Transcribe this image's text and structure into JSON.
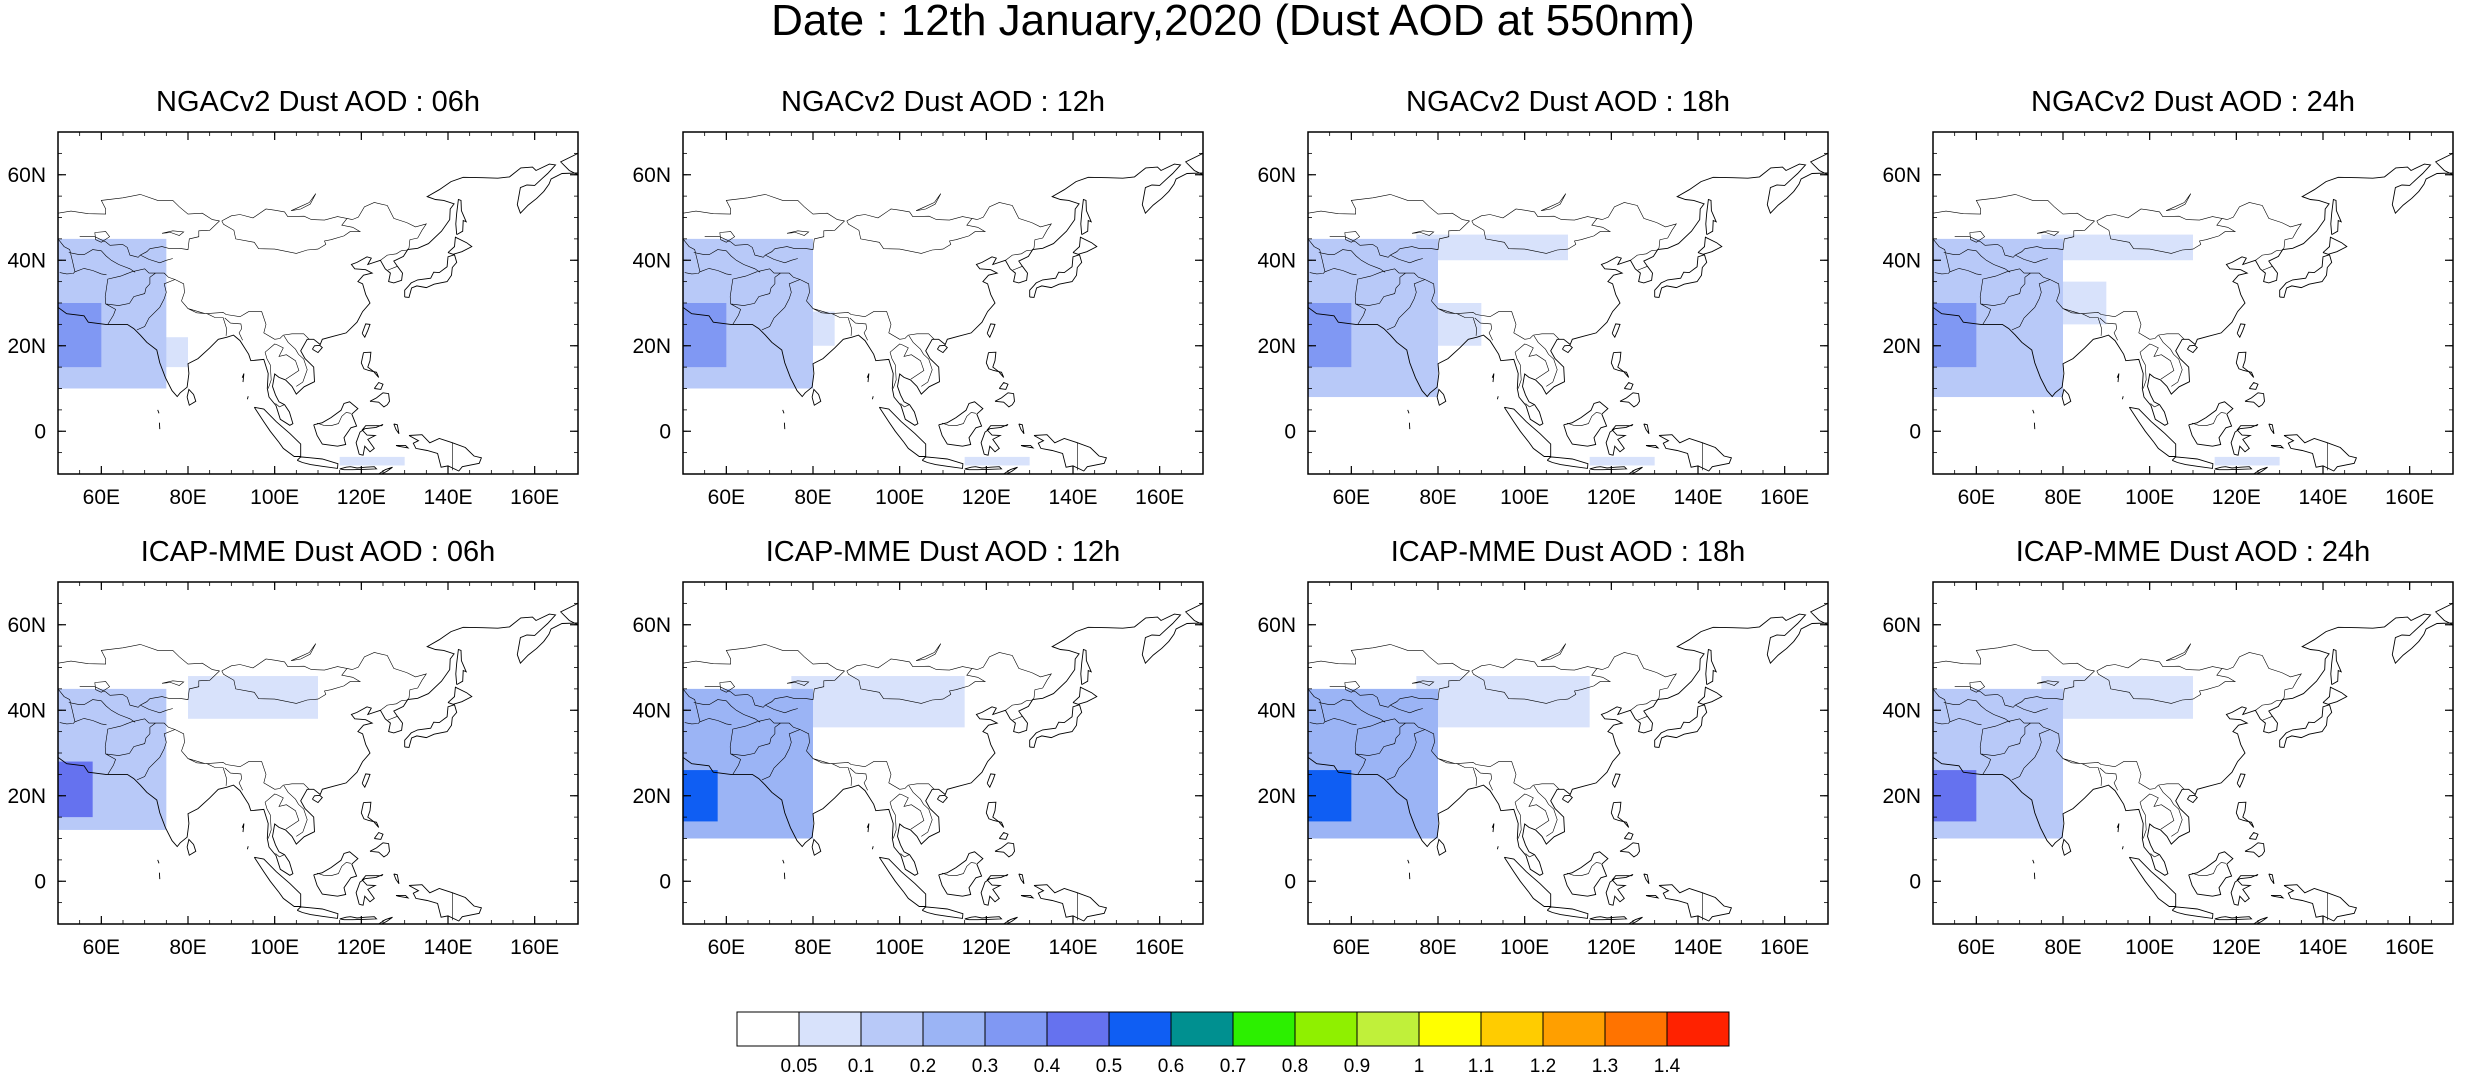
{
  "title": "Date : 12th January,2020 (Dust AOD at 550nm)",
  "axes": {
    "lon_ticks": [
      "60E",
      "80E",
      "100E",
      "120E",
      "140E",
      "160E"
    ],
    "lon_values": [
      60,
      80,
      100,
      120,
      140,
      160
    ],
    "lat_ticks": [
      "60N",
      "40N",
      "20N",
      "0"
    ],
    "lat_values": [
      60,
      40,
      20,
      0
    ],
    "lon_range": [
      50,
      170
    ],
    "lat_range": [
      -10,
      70
    ]
  },
  "panels": [
    {
      "title": "NGACv2 Dust AOD : 06h",
      "model": "NGACv2",
      "hour": "06h"
    },
    {
      "title": "NGACv2 Dust AOD : 12h",
      "model": "NGACv2",
      "hour": "12h"
    },
    {
      "title": "NGACv2 Dust AOD : 18h",
      "model": "NGACv2",
      "hour": "18h"
    },
    {
      "title": "NGACv2 Dust AOD : 24h",
      "model": "NGACv2",
      "hour": "24h"
    },
    {
      "title": "ICAP-MME Dust AOD : 06h",
      "model": "ICAP-MME",
      "hour": "06h"
    },
    {
      "title": "ICAP-MME Dust AOD : 12h",
      "model": "ICAP-MME",
      "hour": "12h"
    },
    {
      "title": "ICAP-MME Dust AOD : 18h",
      "model": "ICAP-MME",
      "hour": "18h"
    },
    {
      "title": "ICAP-MME Dust AOD : 24h",
      "model": "ICAP-MME",
      "hour": "24h"
    }
  ],
  "colorbar": {
    "labels": [
      "0.05",
      "0.1",
      "0.2",
      "0.3",
      "0.4",
      "0.5",
      "0.6",
      "0.7",
      "0.8",
      "0.9",
      "1",
      "1.1",
      "1.2",
      "1.3",
      "1.4"
    ],
    "colors": [
      "#ffffff",
      "#d8e2fb",
      "#b8c9f8",
      "#9bb4f5",
      "#8098f3",
      "#6572ef",
      "#0f5ef3",
      "#009090",
      "#2cf000",
      "#8ff000",
      "#c0f03a",
      "#ffff00",
      "#ffcc00",
      "#ff9f00",
      "#ff7300",
      "#ff2200"
    ]
  },
  "colors": {
    "coast": "#000000",
    "dust_light": "#d8e2fb",
    "dust_mid": "#b8c9f8",
    "dust_high": "#8098f3",
    "dust_peak": "#0f5ef3"
  },
  "chart_data": {
    "type": "heatmap",
    "variable": "Dust AOD at 550nm",
    "panels_rows": [
      "NGACv2",
      "ICAP-MME"
    ],
    "panels_cols": [
      "06h",
      "12h",
      "18h",
      "24h"
    ],
    "xlim": [
      50,
      170
    ],
    "ylim": [
      -10,
      70
    ],
    "dust_regions": {
      "NGACv2": [
        [
          {
            "lon": [
              50,
              60
            ],
            "lat": [
              15,
              30
            ],
            "aod": 0.3
          },
          {
            "lon": [
              50,
              75
            ],
            "lat": [
              10,
              45
            ],
            "aod": 0.1
          },
          {
            "lon": [
              65,
              80
            ],
            "lat": [
              15,
              22
            ],
            "aod": 0.05
          },
          {
            "lon": [
              115,
              130
            ],
            "lat": [
              -8,
              -6
            ],
            "aod": 0.05
          }
        ],
        [
          {
            "lon": [
              50,
              60
            ],
            "lat": [
              15,
              30
            ],
            "aod": 0.3
          },
          {
            "lon": [
              50,
              80
            ],
            "lat": [
              10,
              45
            ],
            "aod": 0.1
          },
          {
            "lon": [
              70,
              85
            ],
            "lat": [
              20,
              28
            ],
            "aod": 0.05
          },
          {
            "lon": [
              115,
              130
            ],
            "lat": [
              -8,
              -6
            ],
            "aod": 0.05
          }
        ],
        [
          {
            "lon": [
              50,
              60
            ],
            "lat": [
              15,
              30
            ],
            "aod": 0.3
          },
          {
            "lon": [
              50,
              80
            ],
            "lat": [
              8,
              45
            ],
            "aod": 0.1
          },
          {
            "lon": [
              70,
              90
            ],
            "lat": [
              20,
              30
            ],
            "aod": 0.05
          },
          {
            "lon": [
              75,
              110
            ],
            "lat": [
              40,
              46
            ],
            "aod": 0.05
          },
          {
            "lon": [
              115,
              130
            ],
            "lat": [
              -8,
              -6
            ],
            "aod": 0.05
          }
        ],
        [
          {
            "lon": [
              50,
              60
            ],
            "lat": [
              15,
              30
            ],
            "aod": 0.3
          },
          {
            "lon": [
              50,
              80
            ],
            "lat": [
              8,
              45
            ],
            "aod": 0.1
          },
          {
            "lon": [
              65,
              90
            ],
            "lat": [
              25,
              35
            ],
            "aod": 0.05
          },
          {
            "lon": [
              75,
              110
            ],
            "lat": [
              40,
              46
            ],
            "aod": 0.05
          },
          {
            "lon": [
              115,
              130
            ],
            "lat": [
              -8,
              -6
            ],
            "aod": 0.05
          }
        ]
      ],
      "ICAP-MME": [
        [
          {
            "lon": [
              50,
              58
            ],
            "lat": [
              15,
              28
            ],
            "aod": 0.4
          },
          {
            "lon": [
              50,
              75
            ],
            "lat": [
              12,
              45
            ],
            "aod": 0.1
          },
          {
            "lon": [
              80,
              110
            ],
            "lat": [
              38,
              48
            ],
            "aod": 0.05
          }
        ],
        [
          {
            "lon": [
              50,
              58
            ],
            "lat": [
              14,
              26
            ],
            "aod": 0.5
          },
          {
            "lon": [
              50,
              80
            ],
            "lat": [
              10,
              45
            ],
            "aod": 0.2
          },
          {
            "lon": [
              75,
              115
            ],
            "lat": [
              36,
              48
            ],
            "aod": 0.05
          }
        ],
        [
          {
            "lon": [
              50,
              60
            ],
            "lat": [
              14,
              26
            ],
            "aod": 0.5
          },
          {
            "lon": [
              50,
              80
            ],
            "lat": [
              10,
              45
            ],
            "aod": 0.2
          },
          {
            "lon": [
              75,
              115
            ],
            "lat": [
              36,
              48
            ],
            "aod": 0.05
          }
        ],
        [
          {
            "lon": [
              50,
              60
            ],
            "lat": [
              14,
              26
            ],
            "aod": 0.4
          },
          {
            "lon": [
              50,
              80
            ],
            "lat": [
              10,
              45
            ],
            "aod": 0.1
          },
          {
            "lon": [
              75,
              110
            ],
            "lat": [
              38,
              48
            ],
            "aod": 0.05
          }
        ]
      ]
    }
  }
}
